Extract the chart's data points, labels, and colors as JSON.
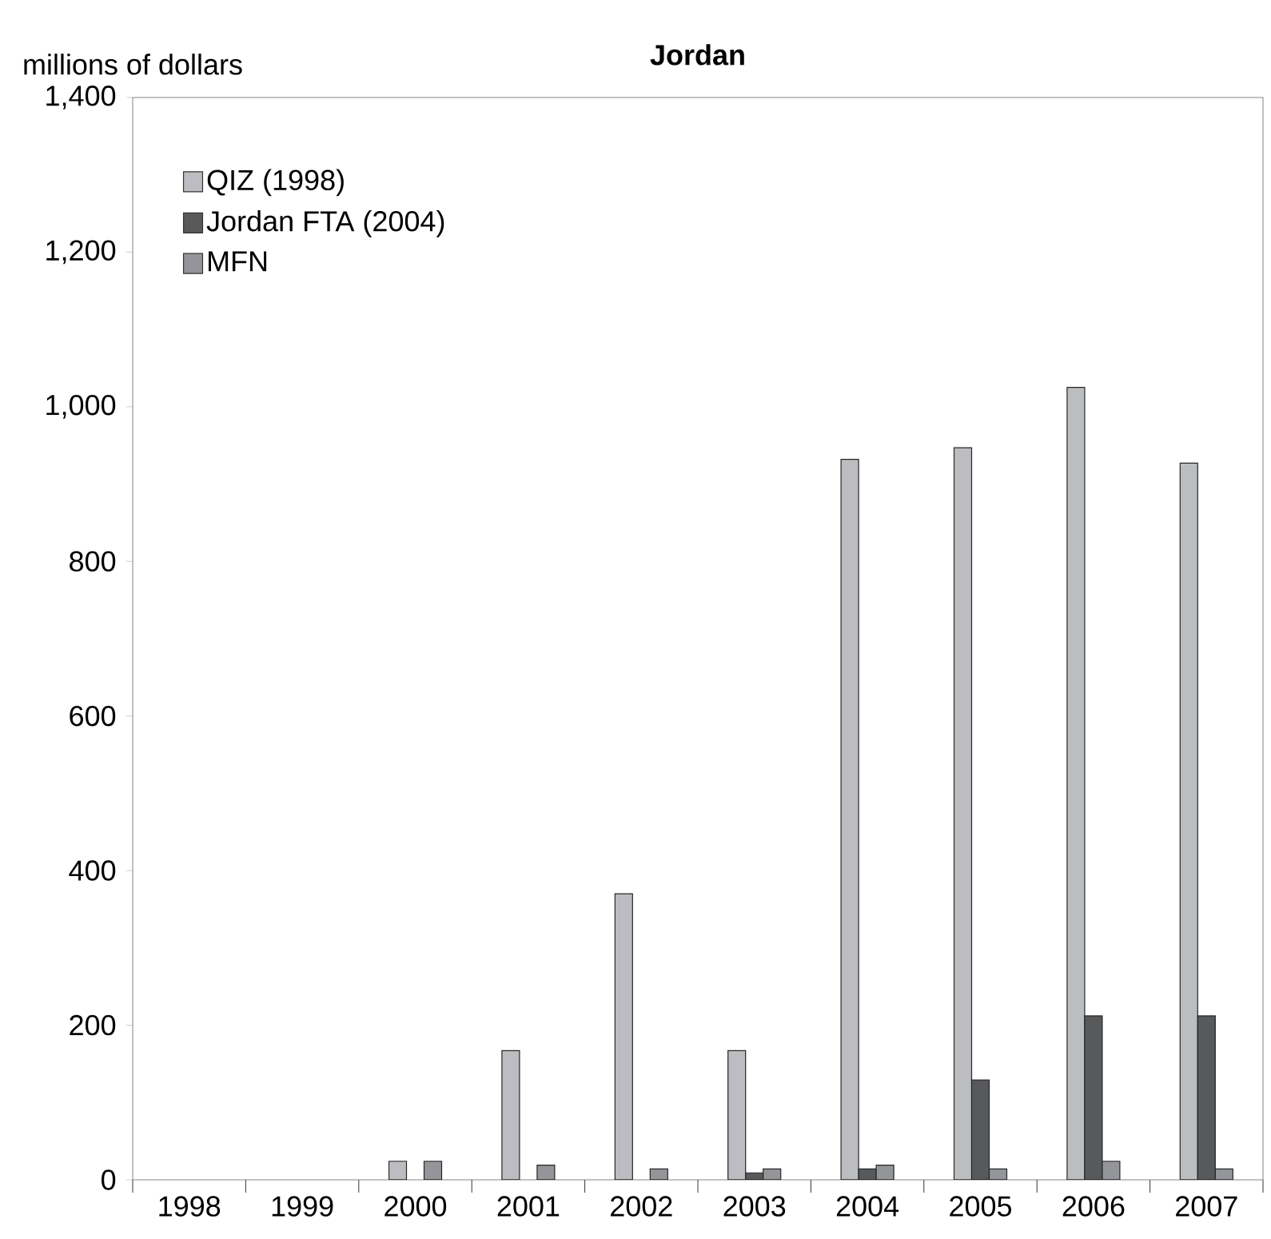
{
  "chart_data": {
    "type": "bar",
    "title": "Jordan",
    "ylabel": "millions of dollars",
    "categories": [
      "1998",
      "1999",
      "2000",
      "2001",
      "2002",
      "2003",
      "2004",
      "2005",
      "2006",
      "2007"
    ],
    "series": [
      {
        "name": "QIZ (1998)",
        "color": "#bcbdc1",
        "values": [
          null,
          null,
          24,
          167,
          370,
          167,
          932,
          947,
          1025,
          927
        ]
      },
      {
        "name": "Jordan FTA (2004)",
        "color": "#58595b",
        "values": [
          null,
          null,
          null,
          null,
          null,
          9,
          14,
          129,
          212,
          212
        ]
      },
      {
        "name": "MFN",
        "color": "#939598",
        "values": [
          null,
          null,
          24,
          19,
          14,
          14,
          19,
          14,
          24,
          14
        ]
      }
    ],
    "ylim": [
      0,
      1400
    ],
    "yticks": [
      0,
      200,
      400,
      600,
      800,
      {
        "value": 1000,
        "label": "1,000"
      },
      {
        "value": 1200,
        "label": "1,200"
      },
      {
        "value": 1400,
        "label": "1,400"
      }
    ],
    "legend": "top left",
    "grid": false
  }
}
